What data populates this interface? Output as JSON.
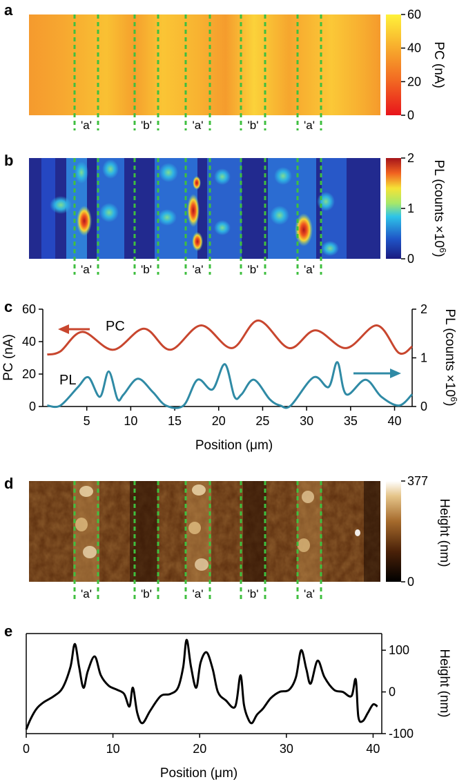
{
  "colors": {
    "pc": "#c8462e",
    "pl": "#2f8aa5",
    "guide": "#3fbf3f",
    "height_line": "#000000"
  },
  "chart_data": [
    {
      "panel": "a",
      "type": "heatmap",
      "colorbar": {
        "label": "PC (nA)",
        "ticks": [
          "0",
          "20",
          "40",
          "60"
        ],
        "range": [
          0,
          60
        ],
        "colormap": "red-yellow"
      },
      "regions": [
        "'a'",
        "'b'",
        "'a'",
        "'b'",
        "'a'"
      ]
    },
    {
      "panel": "b",
      "type": "heatmap",
      "colorbar": {
        "label_main": "PL (counts ×10",
        "label_exp": "6",
        "label_close": ")",
        "ticks": [
          "0",
          "1",
          "2"
        ],
        "range": [
          0,
          2
        ],
        "colormap": "jet"
      },
      "regions": [
        "'a'",
        "'b'",
        "'a'",
        "'b'",
        "'a'"
      ]
    },
    {
      "panel": "c",
      "type": "line",
      "xlabel_main": "Position (",
      "xlabel_mu": "μ",
      "xlabel_end": "m)",
      "xlim": [
        0,
        42
      ],
      "xticks": [
        "5",
        "10",
        "15",
        "20",
        "25",
        "30",
        "35",
        "40"
      ],
      "left_axis": {
        "label": "PC (nA)",
        "ylim": [
          0,
          60
        ],
        "ticks": [
          "0",
          "20",
          "40",
          "60"
        ]
      },
      "right_axis": {
        "label_main": "PL (counts ×10",
        "label_exp": "6",
        "label_close": ")",
        "ylim": [
          0,
          2
        ],
        "ticks": [
          "0",
          "1",
          "2"
        ]
      },
      "series": [
        {
          "name": "PC",
          "axis": "left",
          "x": [
            0.5,
            2,
            4.5,
            8,
            11.5,
            14.5,
            18,
            21.5,
            24.5,
            28,
            31,
            34.5,
            38,
            40.5,
            42
          ],
          "y": [
            32,
            34,
            46,
            35,
            48,
            35,
            50,
            36,
            53,
            36,
            47,
            36,
            50,
            33,
            37
          ]
        },
        {
          "name": "PL",
          "axis": "right",
          "x": [
            0.5,
            2,
            4,
            5.2,
            6.5,
            7.5,
            8.5,
            9.2,
            10.8,
            12.5,
            14,
            16,
            17.6,
            19.3,
            20.7,
            21.8,
            22.6,
            24,
            25.8,
            27,
            28.2,
            30.8,
            32.5,
            33.5,
            34.5,
            36.7,
            38.5,
            40.5,
            42
          ],
          "y": [
            0.02,
            0.02,
            0.4,
            0.6,
            0.2,
            0.72,
            0.15,
            0.25,
            0.57,
            0.3,
            0.02,
            0.02,
            0.55,
            0.35,
            0.87,
            0.2,
            0.25,
            0.55,
            0.15,
            0.02,
            0.02,
            0.6,
            0.4,
            0.91,
            0.25,
            0.55,
            0.2,
            0.02,
            0.25
          ]
        }
      ],
      "annotations": [
        "PC",
        "PL"
      ]
    },
    {
      "panel": "d",
      "type": "heatmap",
      "colorbar": {
        "label": "Height (nm)",
        "ticks": [
          "0",
          "377"
        ],
        "range": [
          0,
          377
        ],
        "colormap": "afm-brown"
      },
      "regions": [
        "'a'",
        "'b'",
        "'a'",
        "'b'",
        "'a'"
      ]
    },
    {
      "panel": "e",
      "type": "line",
      "xlabel_main": "Position (",
      "xlabel_mu": "μ",
      "xlabel_end": "m)",
      "xlim": [
        0,
        41
      ],
      "xticks": [
        "0",
        "10",
        "20",
        "30",
        "40"
      ],
      "right_axis": {
        "label": "Height (nm)",
        "ylim": [
          -100,
          140
        ],
        "ticks": [
          "-100",
          "0",
          "100"
        ]
      },
      "series": [
        {
          "name": "Height",
          "x": [
            0,
            0.5,
            1.2,
            2,
            3.2,
            4.2,
            5.1,
            5.6,
            6.1,
            6.6,
            7.1,
            7.9,
            8.6,
            9.5,
            10.5,
            11.3,
            11.9,
            12.3,
            12.8,
            13.4,
            14.3,
            15.5,
            16.6,
            17.5,
            18.1,
            18.5,
            19,
            19.6,
            20.1,
            20.8,
            21.5,
            22.1,
            23,
            24.1,
            24.7,
            25.1,
            25.5,
            26,
            26.6,
            27.3,
            28.2,
            29.2,
            30.3,
            31.1,
            31.7,
            32.3,
            32.8,
            33.6,
            34.4,
            35.5,
            36.5,
            37.5,
            38,
            38.3,
            38.8,
            39.4,
            40,
            40.5
          ],
          "y": [
            -90,
            -65,
            -40,
            -25,
            -10,
            10,
            60,
            115,
            60,
            10,
            50,
            85,
            40,
            15,
            5,
            -5,
            -35,
            10,
            -50,
            -75,
            -45,
            -10,
            -5,
            10,
            60,
            125,
            60,
            10,
            70,
            95,
            55,
            0,
            -20,
            -35,
            40,
            -30,
            -60,
            -75,
            -55,
            -40,
            -15,
            0,
            5,
            35,
            100,
            55,
            20,
            75,
            35,
            5,
            0,
            -10,
            30,
            -60,
            -70,
            -50,
            -30,
            -35
          ]
        }
      ]
    }
  ],
  "panels": {
    "a": {
      "label": "a"
    },
    "b": {
      "label": "b"
    },
    "c": {
      "label": "c"
    },
    "d": {
      "label": "d"
    },
    "e": {
      "label": "e"
    }
  }
}
